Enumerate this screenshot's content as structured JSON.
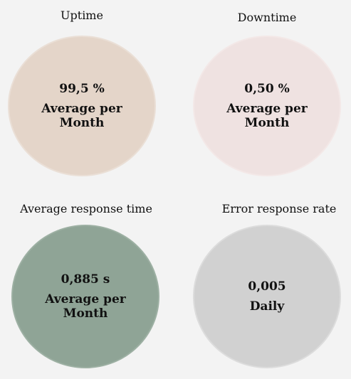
{
  "metrics": [
    {
      "title": "Uptime",
      "value": "99,5 %",
      "caption": "Average per Month",
      "color": "#e4d5c9"
    },
    {
      "title": "Downtime",
      "value": "0,50 %",
      "caption": "Average per Month",
      "color": "#efe2e1"
    },
    {
      "title": "Average response time",
      "value": "0,885 s",
      "caption": "Average per Month",
      "color": "#8fa496"
    },
    {
      "title": "Error response rate",
      "value": "0,005",
      "caption": "Daily",
      "color": "#d1d1d1"
    }
  ],
  "page": {
    "background": "#f3f3f3"
  }
}
